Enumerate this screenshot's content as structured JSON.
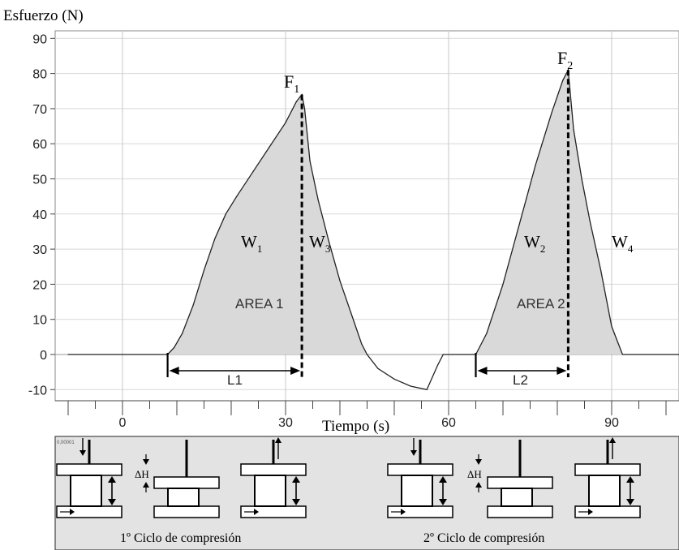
{
  "chart_data": {
    "type": "area",
    "ylabel": "Esfuerzo (N)",
    "xlabel": "Tiempo (s)",
    "xlim": [
      -18,
      104
    ],
    "ylim": [
      -12,
      92
    ],
    "yticks": [
      "90",
      "80",
      "70",
      "60",
      "50",
      "40",
      "30",
      "20",
      "10",
      "0",
      "-10"
    ],
    "xtick_labels": [
      "0",
      "30",
      "60",
      "90"
    ],
    "grid": true,
    "series": [
      {
        "points": [
          [
            -10,
            0
          ],
          [
            8.3,
            0
          ],
          [
            9.5,
            2
          ],
          [
            11,
            6
          ],
          [
            13,
            14
          ],
          [
            15,
            24
          ],
          [
            17,
            33
          ],
          [
            19,
            40
          ],
          [
            21,
            45
          ],
          [
            24,
            52
          ],
          [
            27,
            59
          ],
          [
            30,
            66
          ],
          [
            32,
            72
          ],
          [
            33,
            74
          ],
          [
            33.5,
            70
          ],
          [
            34.5,
            55
          ],
          [
            36,
            44
          ],
          [
            38,
            32
          ],
          [
            40,
            21
          ],
          [
            42,
            12
          ],
          [
            44,
            3
          ],
          [
            45,
            0
          ],
          [
            47,
            -4
          ],
          [
            50,
            -7
          ],
          [
            53,
            -9
          ],
          [
            56,
            -10
          ],
          [
            58,
            -3
          ],
          [
            59,
            0
          ],
          [
            65,
            0
          ],
          [
            67,
            6
          ],
          [
            70,
            20
          ],
          [
            73,
            37
          ],
          [
            76,
            54
          ],
          [
            79,
            69
          ],
          [
            81,
            78
          ],
          [
            82,
            81
          ],
          [
            83,
            64
          ],
          [
            84.5,
            50
          ],
          [
            86,
            38
          ],
          [
            88,
            24
          ],
          [
            90,
            8
          ],
          [
            92,
            0
          ],
          [
            104,
            0
          ]
        ]
      }
    ],
    "regions": [
      {
        "label": "AREA 1",
        "x_start": 8.3,
        "x_end": 45
      },
      {
        "label": "AREA 2",
        "x_start": 65,
        "x_end": 92
      }
    ],
    "peaks": [
      {
        "x": 33,
        "y": 74
      },
      {
        "x": 82,
        "y": 81
      }
    ],
    "annotations": {
      "F1": {
        "main": "F",
        "sub": "1"
      },
      "F2": {
        "main": "F",
        "sub": "2"
      },
      "W1": {
        "main": "W",
        "sub": "1"
      },
      "W2": {
        "main": "W",
        "sub": "2"
      },
      "W3": {
        "main": "W",
        "sub": "3"
      },
      "W4": {
        "main": "W",
        "sub": "4"
      },
      "L1": "L1",
      "L2": "L2",
      "area1": "AREA 1",
      "area2": "AREA 2",
      "L1_span": [
        8.3,
        33
      ],
      "L2_span": [
        65,
        82
      ]
    }
  },
  "diagram": {
    "delta_h": "ΔH",
    "cycle1_caption": "1º Ciclo de compresión",
    "cycle2_caption": "2º Ciclo de compresión",
    "corner_mark": "0,00001"
  }
}
